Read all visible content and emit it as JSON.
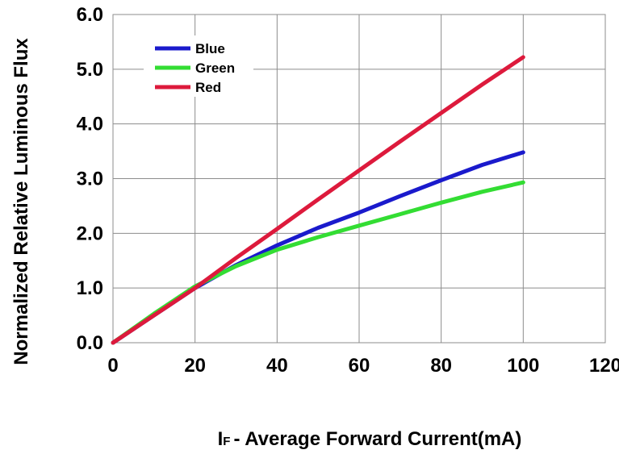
{
  "chart_data": {
    "type": "line",
    "xlabel": "- Average Forward Current(mA)",
    "xlabel_symbol": "I",
    "xlabel_subscript": "F",
    "ylabel": "Normalized Relative Luminous Flux",
    "xlim": [
      0,
      120
    ],
    "ylim": [
      0,
      6
    ],
    "x_ticks": [
      "0",
      "20",
      "40",
      "60",
      "80",
      "100",
      "120"
    ],
    "y_ticks": [
      "0.0",
      "1.0",
      "2.0",
      "3.0",
      "4.0",
      "5.0",
      "6.0"
    ],
    "grid": true,
    "legend_position": "top-left",
    "series": [
      {
        "name": "Blue",
        "color": "#1a1acc",
        "x": [
          0,
          10,
          20,
          30,
          40,
          50,
          60,
          70,
          80,
          90,
          100
        ],
        "y": [
          0.0,
          0.5,
          1.0,
          1.42,
          1.78,
          2.1,
          2.38,
          2.68,
          2.97,
          3.25,
          3.48
        ]
      },
      {
        "name": "Green",
        "color": "#33dd33",
        "x": [
          0,
          10,
          20,
          30,
          40,
          50,
          60,
          70,
          80,
          90,
          100
        ],
        "y": [
          0.0,
          0.53,
          1.03,
          1.4,
          1.7,
          1.93,
          2.14,
          2.35,
          2.56,
          2.76,
          2.93
        ]
      },
      {
        "name": "Red",
        "color": "#dd1a3c",
        "x": [
          0,
          10,
          20,
          30,
          40,
          50,
          60,
          70,
          80,
          90,
          100
        ],
        "y": [
          0.0,
          0.5,
          1.0,
          1.55,
          2.08,
          2.62,
          3.15,
          3.68,
          4.2,
          4.72,
          5.22
        ]
      }
    ]
  }
}
